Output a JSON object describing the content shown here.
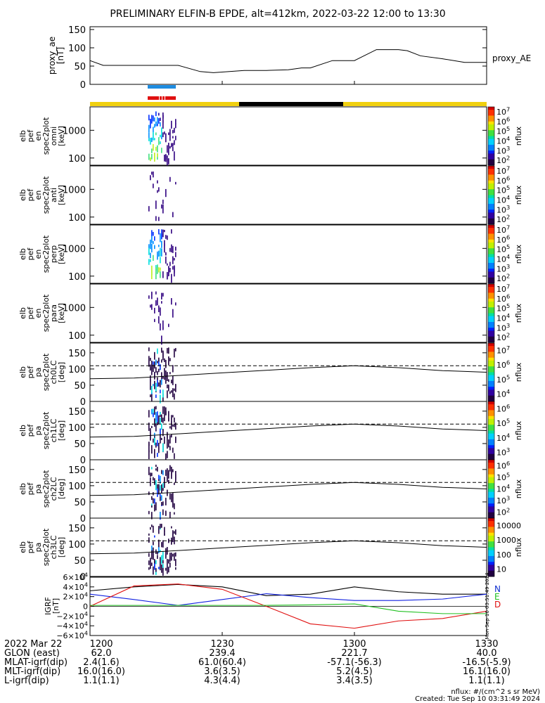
{
  "title": "PRELIMINARY ELFIN-B EPDE, alt=412km, 2022-03-22 12:00 to 13:30",
  "x_tick_labels": [
    "1200",
    "1230",
    "1300",
    "1330"
  ],
  "colors": {
    "ae_bar": "#1e8ce0",
    "red_bar": "#e01010",
    "day_yellow": "#f0d010",
    "night_black": "#000000",
    "grf_n": "#000000",
    "grf_e": "#1020e0",
    "grf_d": "#e01010",
    "grf_green": "#20c020",
    "grf_n_label": "#1030d0",
    "grf_e_label": "#20c020",
    "grf_d_label": "#e01010"
  },
  "chart_data": [
    {
      "type": "line",
      "name": "proxy_ae",
      "ylabel": "proxy_ae\n[nT]",
      "legend": "proxy_AE",
      "ylim": [
        0,
        150
      ],
      "y_ticks": [
        "0",
        "50",
        "100",
        "150"
      ],
      "x_minutes": [
        0,
        3,
        10,
        20,
        25,
        28,
        35,
        40,
        45,
        48,
        50,
        55,
        60,
        65,
        70,
        72,
        75,
        80,
        85,
        90
      ],
      "values": [
        65,
        52,
        52,
        52,
        35,
        32,
        38,
        38,
        40,
        45,
        45,
        65,
        65,
        95,
        95,
        92,
        78,
        70,
        60,
        60
      ]
    },
    {
      "type": "heatmap",
      "name": "elb_pef_en_spec2plot_omni",
      "ylabel": "elb\npef\nen\nspec2plot\nomni\n[keV]",
      "yscale": "log",
      "y_ticks": [
        "100",
        "1000"
      ],
      "colorbar_label": "nflux",
      "colorbar_ticks": [
        "10^2",
        "10^3",
        "10^4",
        "10^5",
        "10^6",
        "10^7"
      ]
    },
    {
      "type": "heatmap",
      "name": "elb_pef_en_spec2plot_anti",
      "ylabel": "elb\npef\nen\nspec2plot\nanti\n[keV]",
      "yscale": "log",
      "y_ticks": [
        "100",
        "1000"
      ],
      "colorbar_label": "nflux",
      "colorbar_ticks": [
        "10^2",
        "10^3",
        "10^4",
        "10^5",
        "10^6",
        "10^7"
      ]
    },
    {
      "type": "heatmap",
      "name": "elb_pef_en_spec2plot_perp",
      "ylabel": "elb\npef\nen\nspec2plot\nperp\n[keV]",
      "yscale": "log",
      "y_ticks": [
        "100",
        "1000"
      ],
      "colorbar_label": "nflux",
      "colorbar_ticks": [
        "10^2",
        "10^3",
        "10^4",
        "10^5",
        "10^6",
        "10^7"
      ]
    },
    {
      "type": "heatmap",
      "name": "elb_pef_en_spec2plot_para",
      "ylabel": "elb\npef\nen\nspec2plot\npara\n[keV]",
      "yscale": "log",
      "y_ticks": [
        "100",
        "1000"
      ],
      "colorbar_label": "nflux",
      "colorbar_ticks": [
        "10^2",
        "10^3",
        "10^4",
        "10^5",
        "10^6",
        "10^7"
      ]
    },
    {
      "type": "heatmap",
      "name": "elb_pef_pa_spec2plot_ch0LC",
      "ylabel": "elb\npef\npa\nspec2plot\nch0LC\n[deg]",
      "ylim": [
        0,
        180
      ],
      "y_ticks": [
        "0",
        "50",
        "100",
        "150"
      ],
      "colorbar_label": "nflux",
      "colorbar_ticks": [
        "10^4",
        "10^5",
        "10^6",
        "10^7"
      ],
      "loss_cone_solid": [
        70,
        72,
        80,
        88,
        96,
        104,
        110,
        104,
        95,
        90
      ],
      "loss_cone_dashed": [
        110,
        110,
        110,
        110,
        110,
        110,
        110,
        110,
        110,
        110
      ]
    },
    {
      "type": "heatmap",
      "name": "elb_pef_pa_spec2plot_ch1LC",
      "ylabel": "elb\npef\npa\nspec2plot\nch1LC\n[deg]",
      "ylim": [
        0,
        180
      ],
      "y_ticks": [
        "0",
        "50",
        "100",
        "150"
      ],
      "colorbar_label": "nflux",
      "colorbar_ticks": [
        "10^3",
        "10^4",
        "10^5",
        "10^6"
      ],
      "loss_cone_solid": [
        70,
        72,
        80,
        88,
        96,
        104,
        110,
        104,
        95,
        90
      ],
      "loss_cone_dashed": [
        110,
        110,
        110,
        110,
        110,
        110,
        110,
        110,
        110,
        110
      ]
    },
    {
      "type": "heatmap",
      "name": "elb_pef_pa_spec2plot_ch2LC",
      "ylabel": "elb\npef\npa\nspec2plot\nch2LC\n[deg]",
      "ylim": [
        0,
        180
      ],
      "y_ticks": [
        "0",
        "50",
        "100",
        "150"
      ],
      "colorbar_label": "nflux",
      "colorbar_ticks": [
        "10^2",
        "10^3",
        "10^4",
        "10^5",
        "10^6"
      ],
      "loss_cone_solid": [
        70,
        72,
        80,
        88,
        96,
        104,
        110,
        104,
        95,
        90
      ],
      "loss_cone_dashed": [
        110,
        110,
        110,
        110,
        110,
        110,
        110,
        110,
        110,
        110
      ]
    },
    {
      "type": "heatmap",
      "name": "elb_pef_pa_spec2plot_ch3LC",
      "ylabel": "elb\npef\npa\nspec2plot\nch3LC\n[deg]",
      "ylim": [
        0,
        180
      ],
      "y_ticks": [
        "0",
        "50",
        "100",
        "150"
      ],
      "colorbar_label": "nflux",
      "colorbar_ticks": [
        "10",
        "100",
        "1000",
        "10000"
      ],
      "loss_cone_solid": [
        70,
        72,
        80,
        88,
        96,
        104,
        110,
        104,
        95,
        90
      ],
      "loss_cone_dashed": [
        110,
        110,
        110,
        110,
        110,
        110,
        110,
        110,
        110,
        110
      ]
    },
    {
      "type": "line",
      "name": "IGRF",
      "ylabel": "IGRF\n[nT]",
      "ylim": [
        -60000,
        60000
      ],
      "y_ticks": [
        "6×10^4",
        "4×10^4",
        "2×10^4",
        "0",
        "−2×10^4",
        "−4×10^4",
        "−6×10^4"
      ],
      "legend": [
        "N",
        "E",
        "D"
      ],
      "side_label": "Mon Sep 16 03:51:49 2024",
      "x_minutes": [
        0,
        10,
        20,
        30,
        40,
        50,
        60,
        70,
        80,
        90
      ],
      "series": [
        {
          "name": "N",
          "values": [
            32000,
            40000,
            45000,
            40000,
            22000,
            25000,
            40000,
            30000,
            25000,
            25000
          ]
        },
        {
          "name": "E",
          "values": [
            25000,
            14000,
            2000,
            14000,
            26000,
            18000,
            12000,
            12000,
            15000,
            25000
          ]
        },
        {
          "name": "D",
          "values": [
            0,
            42000,
            46000,
            35000,
            0,
            -36000,
            -45000,
            -30000,
            -25000,
            -10000
          ]
        },
        {
          "values": [
            2000,
            2000,
            2000,
            2000,
            2000,
            3000,
            5000,
            -10000,
            -15000,
            -15000
          ]
        }
      ]
    }
  ],
  "footer": {
    "rows": [
      {
        "label": "2022 Mar 22",
        "values": [
          "1200",
          "1230",
          "1300",
          "1330"
        ]
      },
      {
        "label": "GLON (east)",
        "values": [
          "62.0",
          "239.4",
          "221.7",
          "40.0"
        ]
      },
      {
        "label": "MLAT-igrf(dip)",
        "values": [
          "2.4(1.6)",
          "61.0(60.4)",
          "-57.1(-56.3)",
          "-16.5(-5.9)"
        ]
      },
      {
        "label": "MLT-igrf(dip)",
        "values": [
          "16.0(16.0)",
          "3.6(3.5)",
          "5.2(4.5)",
          "16.1(16.0)"
        ]
      },
      {
        "label": "L-igrf(dip)",
        "values": [
          "1.1(1.1)",
          "4.3(4.4)",
          "3.4(3.5)",
          "1.1(1.1)"
        ]
      }
    ],
    "units_note": "nflux: #/(cm^2 s sr MeV)",
    "created": "Created: Tue Sep 10 03:31:49 2024"
  }
}
